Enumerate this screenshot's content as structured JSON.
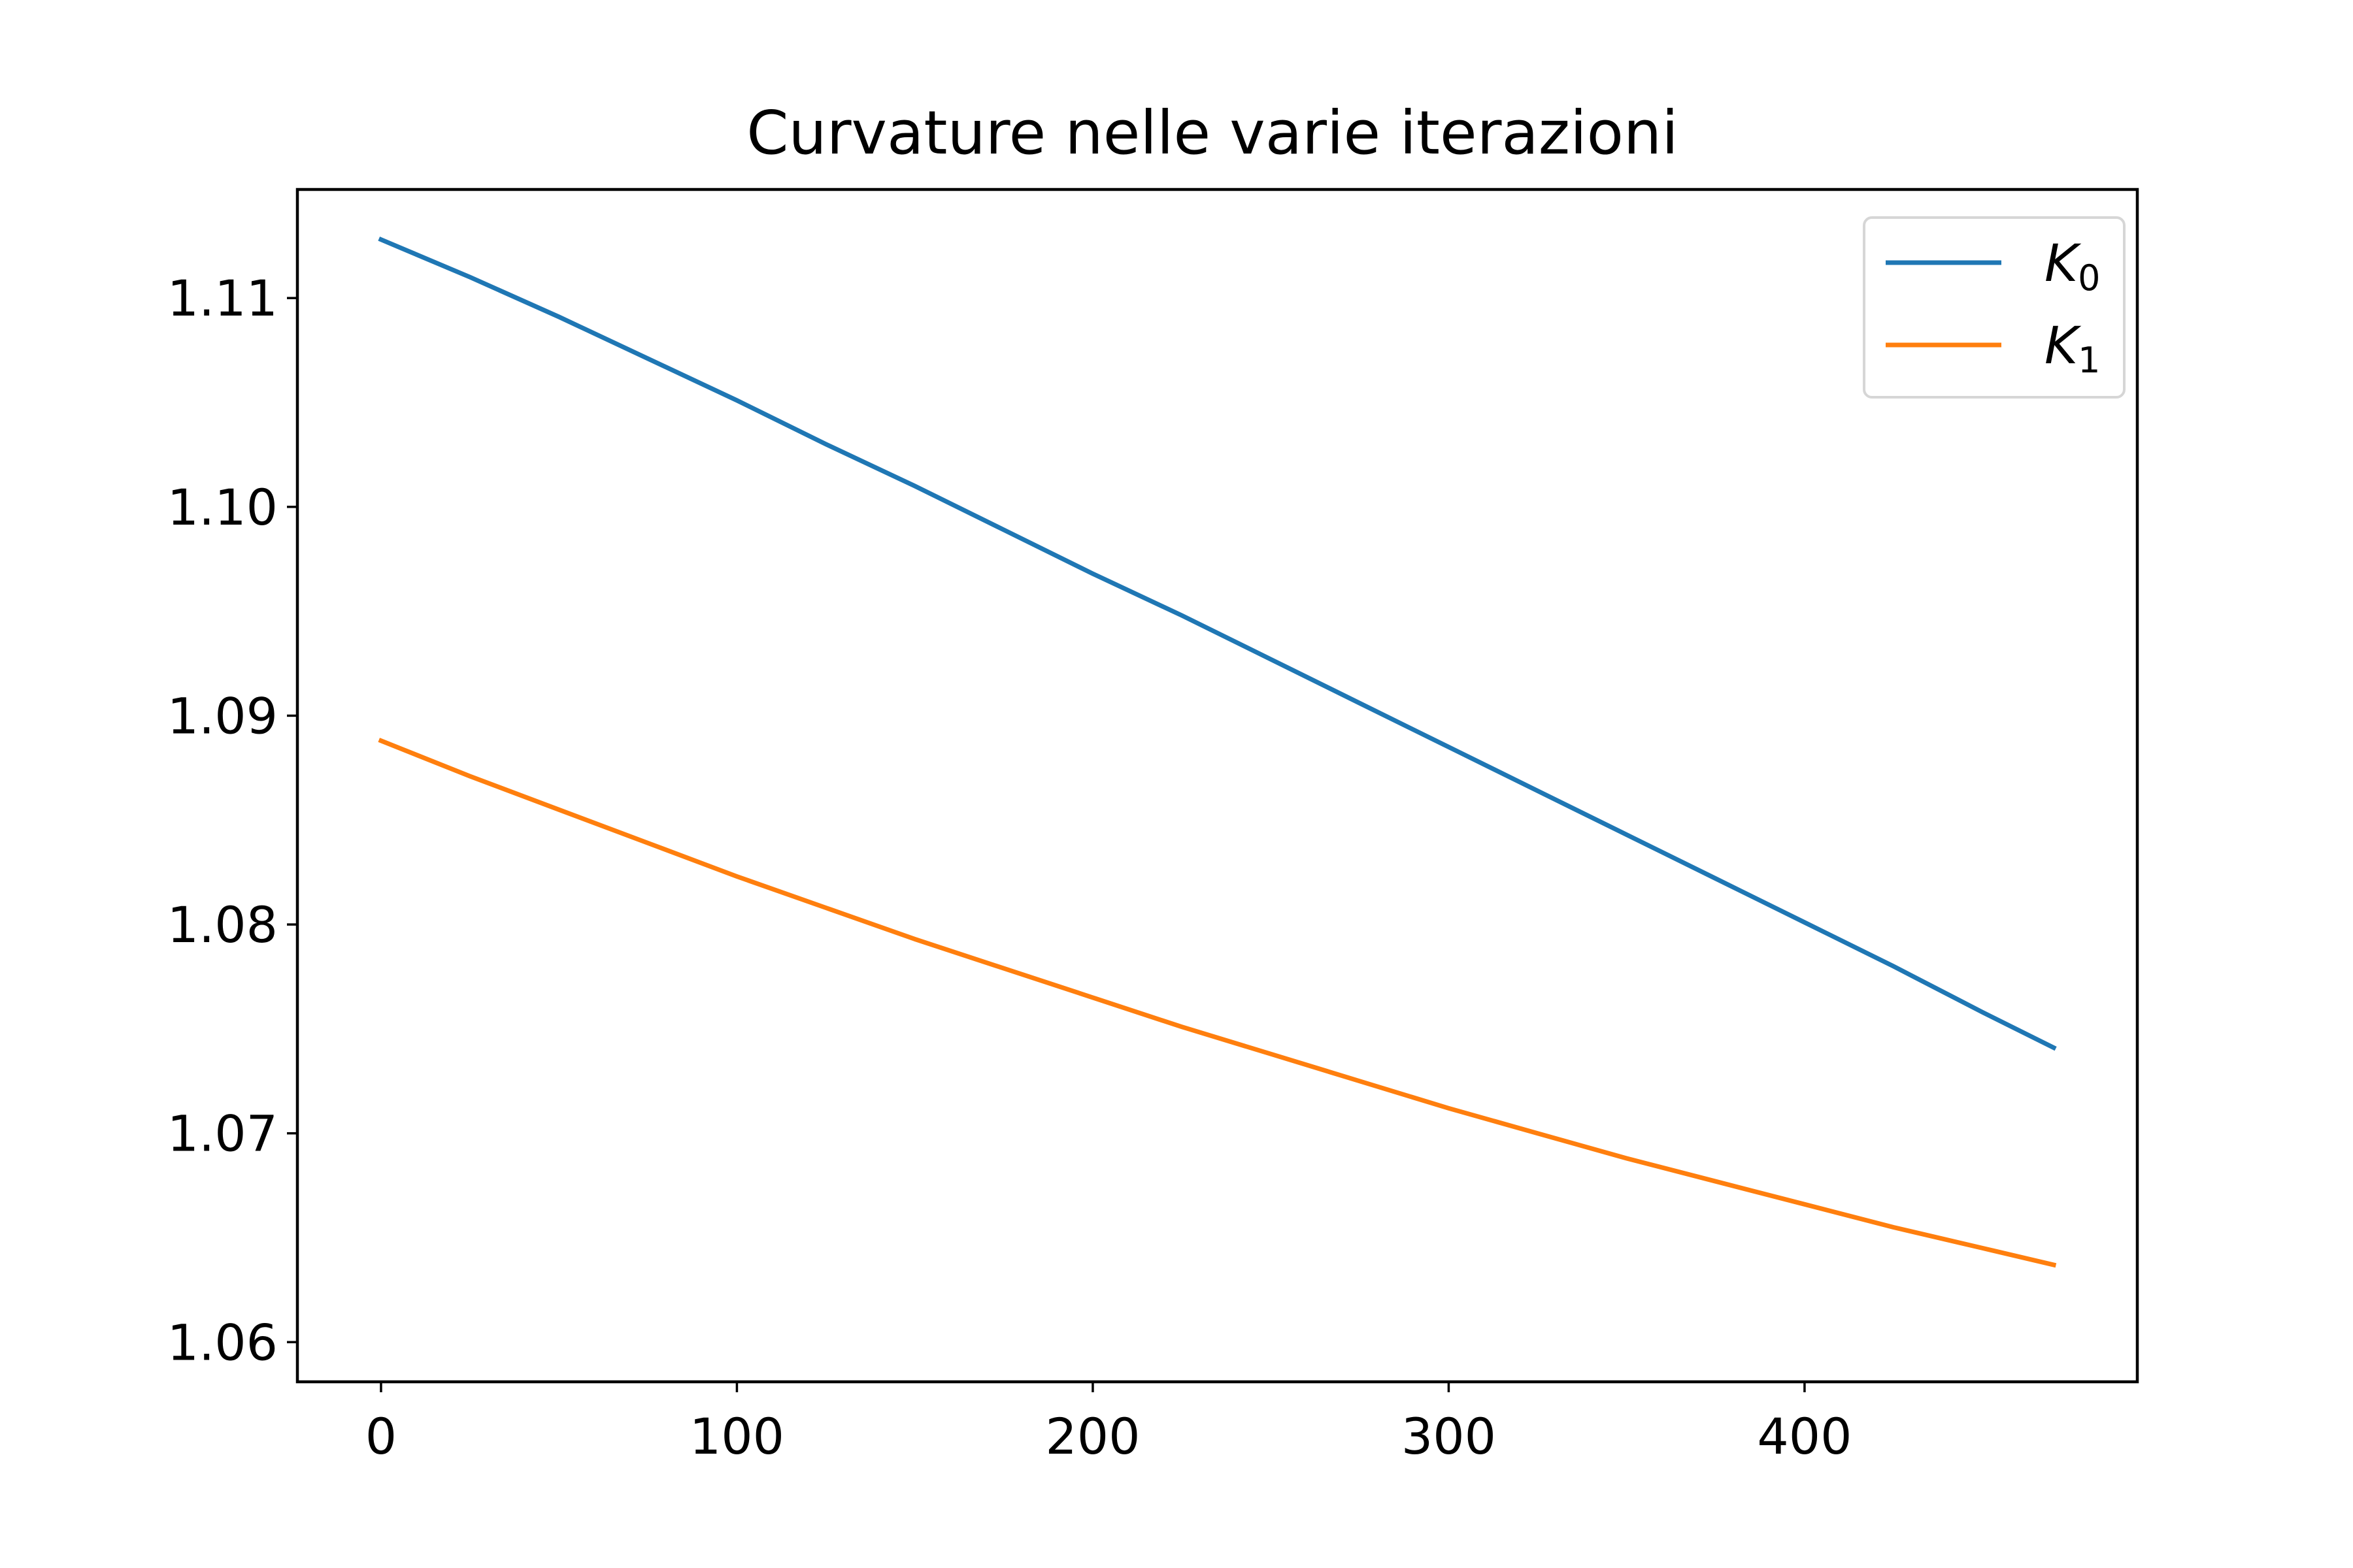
{
  "chart_data": {
    "type": "line",
    "title": "Curvature nelle varie iterazioni",
    "xlabel": "",
    "ylabel": "",
    "xlim": [
      -23.5,
      493.5
    ],
    "ylim": [
      1.0581,
      1.1152
    ],
    "xticks": [
      0,
      100,
      200,
      300,
      400
    ],
    "yticks": [
      1.06,
      1.07,
      1.08,
      1.09,
      1.1,
      1.11
    ],
    "ytick_labels": [
      "1.06",
      "1.07",
      "1.08",
      "1.09",
      "1.10",
      "1.11"
    ],
    "grid": false,
    "legend_position": "top-right",
    "series": [
      {
        "name_main": "K",
        "name_sub": "0",
        "color": "#1f77b4",
        "x": [
          0,
          25,
          50,
          75,
          100,
          125,
          150,
          175,
          200,
          225,
          250,
          275,
          300,
          325,
          350,
          375,
          400,
          425,
          450,
          470
        ],
        "y": [
          1.1128,
          1.111,
          1.1091,
          1.1071,
          1.1051,
          1.103,
          1.101,
          1.0989,
          1.0968,
          1.0948,
          1.0927,
          1.0906,
          1.0885,
          1.0864,
          1.0843,
          1.0822,
          1.0801,
          1.078,
          1.0758,
          1.0741
        ]
      },
      {
        "name_main": "K",
        "name_sub": "1",
        "color": "#ff7f0e",
        "x": [
          0,
          25,
          50,
          75,
          100,
          125,
          150,
          175,
          200,
          225,
          250,
          275,
          300,
          325,
          350,
          375,
          400,
          425,
          450,
          470
        ],
        "y": [
          1.0888,
          1.0871,
          1.0855,
          1.0839,
          1.0823,
          1.0808,
          1.0793,
          1.0779,
          1.0765,
          1.0751,
          1.0738,
          1.0725,
          1.0712,
          1.07,
          1.0688,
          1.0677,
          1.0666,
          1.0655,
          1.0645,
          1.0637
        ]
      }
    ]
  }
}
